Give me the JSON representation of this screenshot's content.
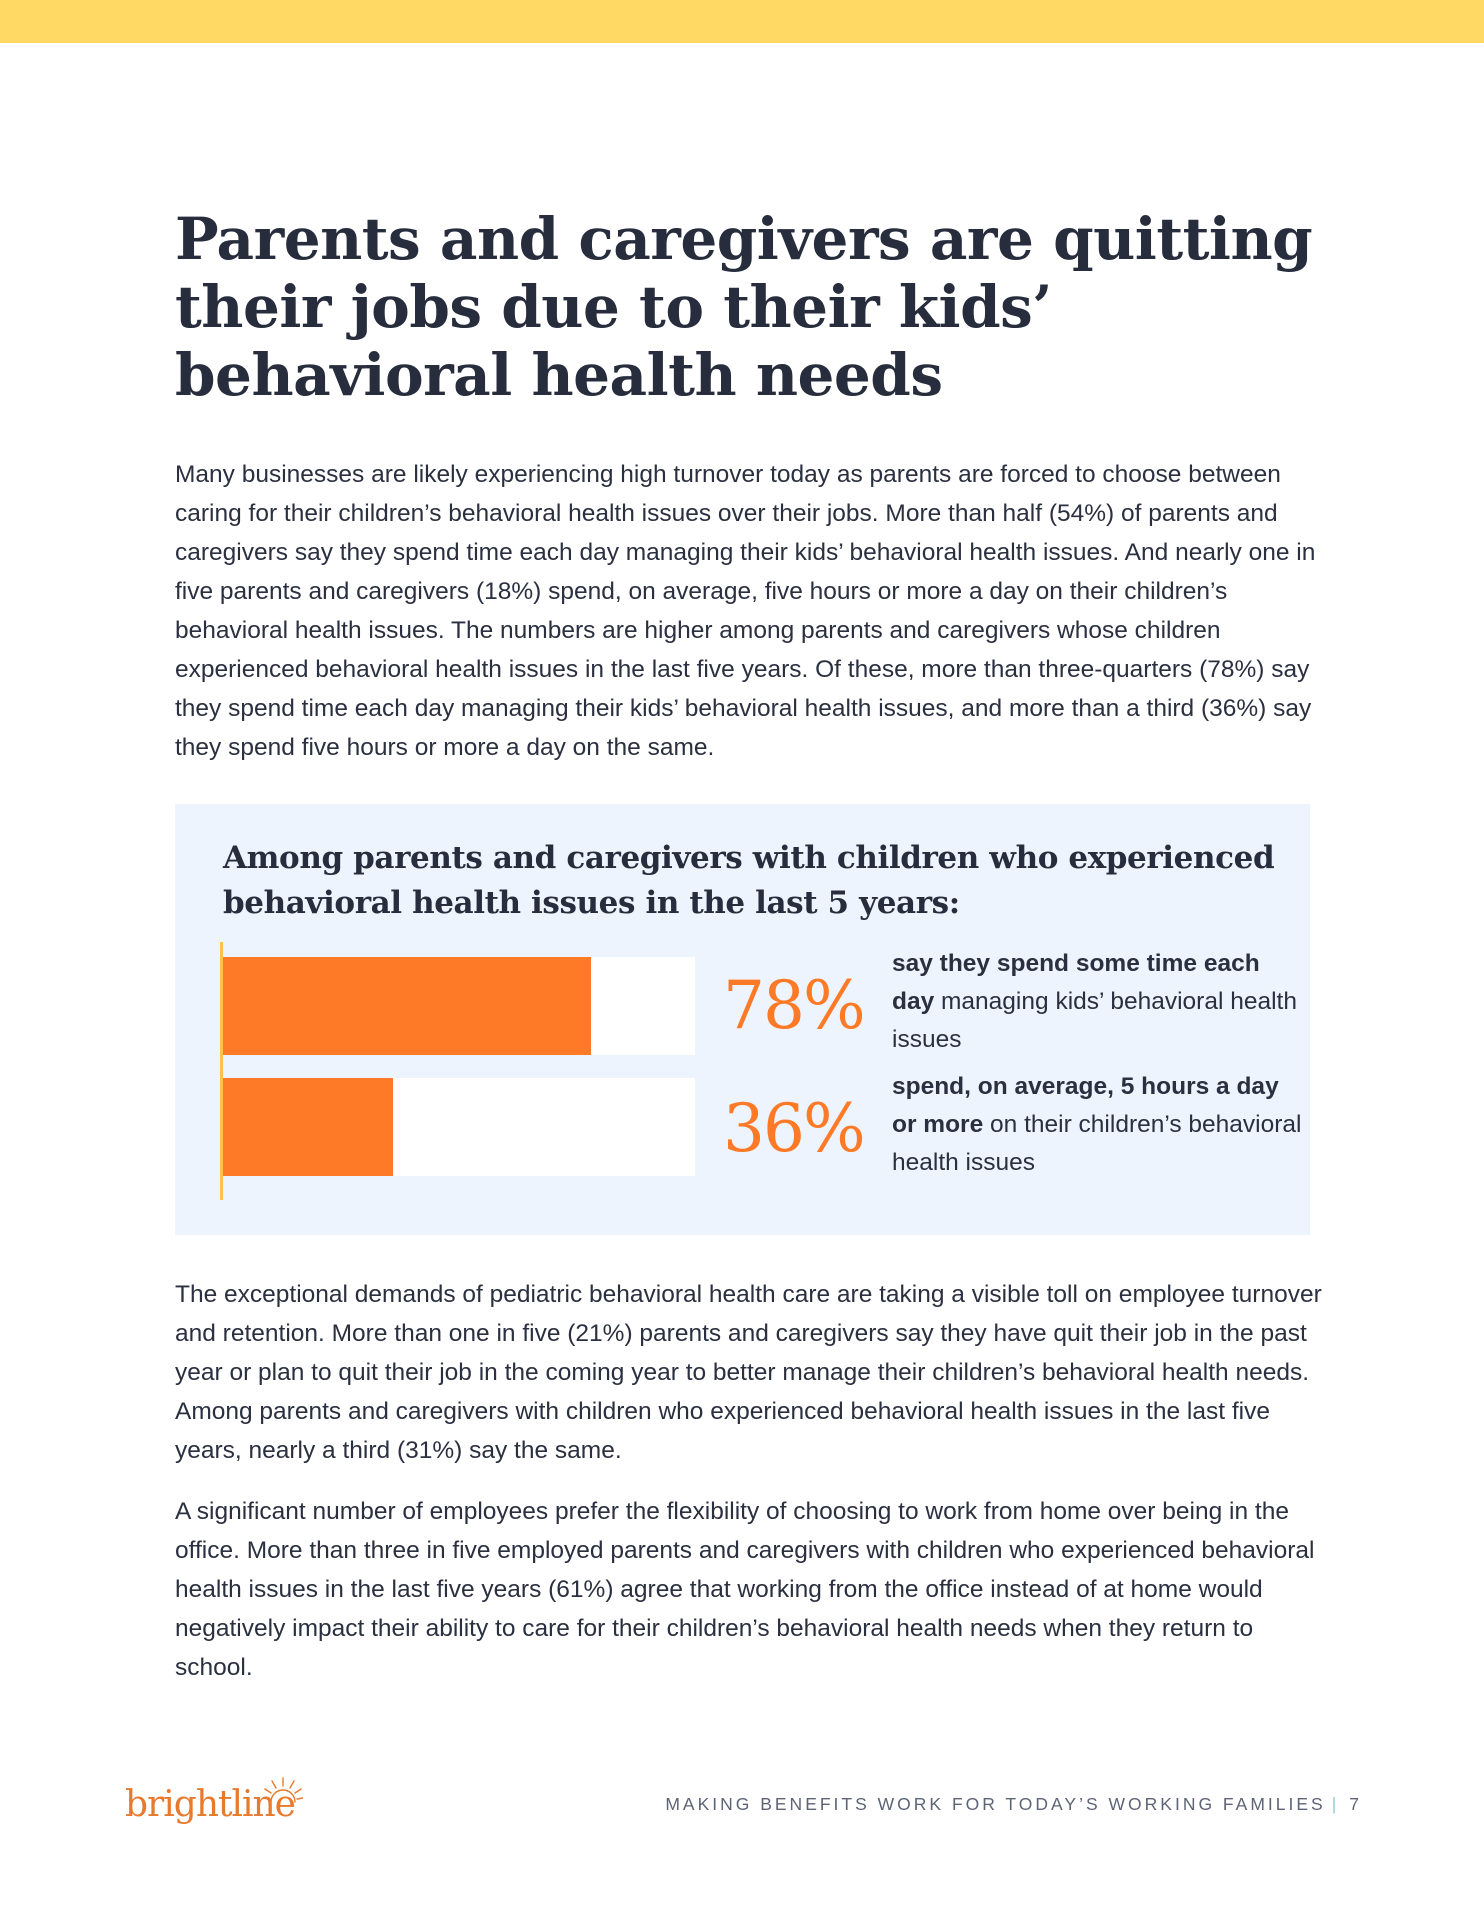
{
  "title": "Parents and caregivers are quitting their jobs due to their kids’ behavioral health needs",
  "paragraphs": {
    "intro": "Many businesses are likely experiencing high turnover today as parents are forced to choose between caring for their children’s behavioral health issues over their jobs. More than half (54%) of parents and caregivers say they spend time each day managing their kids’ behavioral health issues. And nearly one in five parents and caregivers (18%) spend, on average, five hours or more a day on their children’s behavioral health issues. The numbers are higher among parents and caregivers whose children experienced behavioral health issues in the last five years. Of these, more than three-quarters (78%) say they spend time each day managing their kids’ behavioral health issues, and more than a third (36%) say they spend five hours or more a day on the same.",
    "turnover": "The exceptional demands of pediatric behavioral health care are taking a visible toll on employee turnover and retention. More than one in five (21%) parents and caregivers say they have quit their job in the past year or plan to quit their job in the coming year to better manage their children’s behavioral health needs. Among parents and caregivers with children who experienced behavioral health issues in the last five years, nearly a third (31%) say the same.",
    "remote": "A significant number of employees prefer the flexibility of choosing to work from home over being in the office. More than three in five employed parents and caregivers with children who experienced behavioral health issues in the last five years (61%) agree that working from the office instead of at home would negatively impact their ability to care for their children’s behavioral health needs when they return to school."
  },
  "stats_box": {
    "heading": "Among parents and caregivers with children who experienced behavioral health issues in the last 5 years:",
    "stats": [
      {
        "value": 78,
        "label": "78%",
        "desc_bold": "say they spend some time each day",
        "desc_rest": " managing kids’ behavioral health issues"
      },
      {
        "value": 36,
        "label": "36%",
        "desc_bold": "spend, on average, 5 hours a day or more",
        "desc_rest": " on their children’s behavioral health issues"
      }
    ]
  },
  "chart_data": {
    "type": "bar",
    "orientation": "horizontal",
    "categories": [
      "say they spend some time each day managing kids’ behavioral health issues",
      "spend, on average, 5 hours a day or more on their children’s behavioral health issues"
    ],
    "values": [
      78,
      36
    ],
    "data_labels": [
      "78%",
      "36%"
    ],
    "xlim": [
      0,
      100
    ],
    "title": "Among parents and caregivers with children who experienced behavioral health issues in the last 5 years:"
  },
  "footer": {
    "logo_text": "brightline",
    "running_title": "MAKING BENEFITS WORK FOR TODAY’S WORKING FAMILIES",
    "separator": "|",
    "page_number": "7"
  },
  "colors": {
    "band": "#ffd963",
    "accent": "#fe7a27",
    "box_bg": "#eef4fd",
    "heading": "#272d3c",
    "logo": "#e87a2d"
  }
}
